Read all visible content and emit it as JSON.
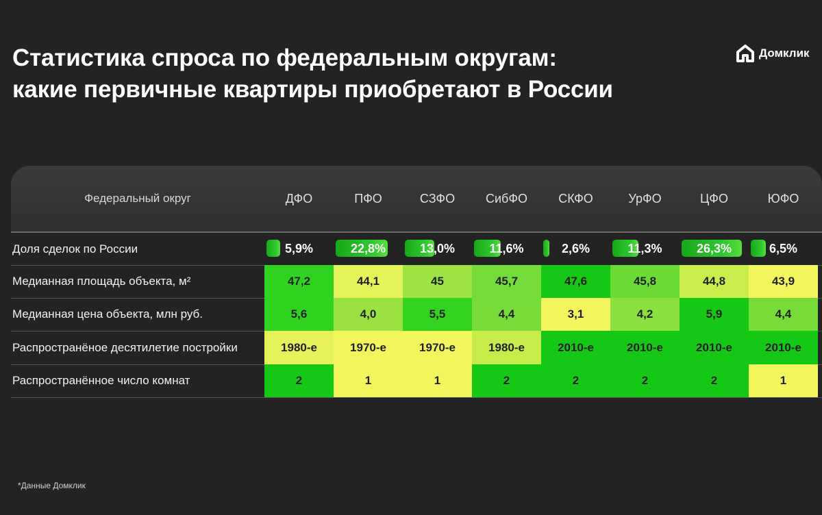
{
  "title": {
    "line1": "Статистика спроса по федеральным округам:",
    "line2": "какие первичные квартиры приобретают в России"
  },
  "logo": {
    "text": "Домклик",
    "icon": "house-icon",
    "color": "#ffffff"
  },
  "footnote": "*Данные Домклик",
  "colors": {
    "background": "#232323",
    "dark_green": "#15c815",
    "green": "#45cf2d",
    "light_green": "#8ee040",
    "yellow_green": "#c6ec4a",
    "yellow": "#f2f55c"
  },
  "chart_data": {
    "type": "table",
    "header_label": "Федеральный округ",
    "columns": [
      "ДФО",
      "ПФО",
      "СЗФО",
      "СибФО",
      "СКФО",
      "УрФО",
      "ЦФО",
      "ЮФО"
    ],
    "rows": [
      {
        "label": "Доля сделок по России",
        "kind": "bar",
        "values": [
          "5,9%",
          "22,8%",
          "13,0%",
          "11,6%",
          "2,6%",
          "11,3%",
          "26,3%",
          "6,5%"
        ],
        "numeric": [
          5.9,
          22.8,
          13.0,
          11.6,
          2.6,
          11.3,
          26.3,
          6.5
        ]
      },
      {
        "label": "Медианная площадь объекта, м²",
        "kind": "heat",
        "values": [
          "47,2",
          "44,1",
          "45",
          "45,7",
          "47,6",
          "45,8",
          "44,8",
          "43,9"
        ],
        "colors": [
          "#2ed21f",
          "#e5f35a",
          "#9ce343",
          "#74db3a",
          "#15c815",
          "#6bd936",
          "#c8ed4c",
          "#f2f55c"
        ]
      },
      {
        "label": "Медианная цена объекта, млн руб.",
        "kind": "heat",
        "values": [
          "5,6",
          "4,0",
          "5,5",
          "4,4",
          "3,1",
          "4,2",
          "5,9",
          "4,4"
        ],
        "colors": [
          "#2ed21f",
          "#99e242",
          "#31d320",
          "#77db3a",
          "#f2f55c",
          "#8ae03f",
          "#15c815",
          "#77db3a"
        ]
      },
      {
        "label": "Распространёное десятилетие постройки",
        "kind": "heat",
        "values": [
          "1980-е",
          "1970-е",
          "1970-е",
          "1980-е",
          "2010-е",
          "2010-е",
          "2010-е",
          "2010-е"
        ],
        "colors": [
          "#e6f25a",
          "#f2f55c",
          "#f2f55c",
          "#c6ec4a",
          "#15c815",
          "#15c815",
          "#15c815",
          "#15c815"
        ]
      },
      {
        "label": "Распространённое число комнат",
        "kind": "heat",
        "values": [
          "2",
          "1",
          "1",
          "2",
          "2",
          "2",
          "2",
          "1"
        ],
        "colors": [
          "#15c815",
          "#f2f55c",
          "#f2f55c",
          "#15c815",
          "#15c815",
          "#15c815",
          "#15c815",
          "#f2f55c"
        ]
      }
    ]
  }
}
